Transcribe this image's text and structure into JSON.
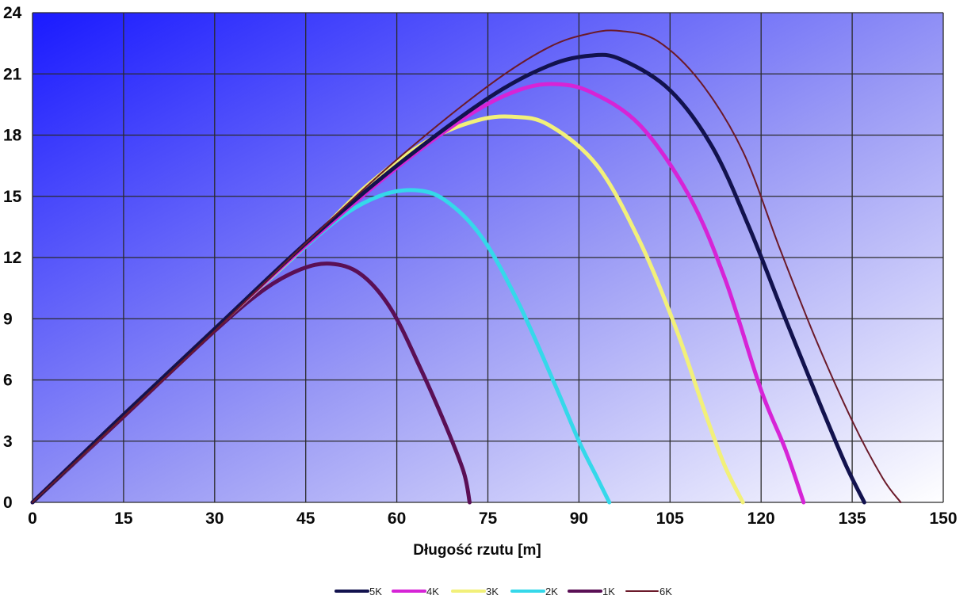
{
  "chart_data": {
    "type": "line",
    "title": "",
    "xlabel": "Długość rzutu [m]",
    "ylabel": "",
    "xlim": [
      0,
      150
    ],
    "ylim": [
      0,
      24
    ],
    "x_ticks": [
      0,
      15,
      30,
      45,
      60,
      75,
      90,
      105,
      120,
      135,
      150
    ],
    "y_ticks": [
      0,
      3,
      6,
      9,
      12,
      15,
      18,
      21,
      24
    ],
    "grid": true,
    "legend_position": "bottom",
    "colors": {
      "plot_bg_top": "#1a1aff",
      "plot_bg_bottom": "#ffffff",
      "grid": "#2a2a2a"
    },
    "series": [
      {
        "name": "5K",
        "color": "#12124e",
        "stroke_weight": "thick",
        "points": [
          [
            0,
            0
          ],
          [
            15,
            4.3
          ],
          [
            30,
            8.5
          ],
          [
            45,
            12.7
          ],
          [
            60,
            16.5
          ],
          [
            75,
            19.8
          ],
          [
            85,
            21.4
          ],
          [
            92,
            21.9
          ],
          [
            97,
            21.7
          ],
          [
            105,
            20.2
          ],
          [
            112,
            17.4
          ],
          [
            118,
            13.5
          ],
          [
            124,
            9.0
          ],
          [
            130,
            4.6
          ],
          [
            134,
            1.8
          ],
          [
            137,
            0
          ]
        ]
      },
      {
        "name": "4K",
        "color": "#d624d6",
        "stroke_weight": "thick",
        "points": [
          [
            0,
            0
          ],
          [
            15,
            4.3
          ],
          [
            30,
            8.5
          ],
          [
            45,
            12.6
          ],
          [
            60,
            16.4
          ],
          [
            72,
            19.0
          ],
          [
            80,
            20.2
          ],
          [
            86,
            20.5
          ],
          [
            92,
            20.1
          ],
          [
            100,
            18.5
          ],
          [
            108,
            15.1
          ],
          [
            114,
            11.0
          ],
          [
            120,
            5.5
          ],
          [
            124,
            2.6
          ],
          [
            127,
            0
          ]
        ]
      },
      {
        "name": "3K",
        "color": "#f2f07a",
        "stroke_weight": "thick",
        "points": [
          [
            0,
            0
          ],
          [
            15,
            4.3
          ],
          [
            30,
            8.5
          ],
          [
            45,
            12.6
          ],
          [
            55,
            15.5
          ],
          [
            65,
            17.7
          ],
          [
            73,
            18.7
          ],
          [
            79,
            18.9
          ],
          [
            85,
            18.5
          ],
          [
            93,
            16.5
          ],
          [
            100,
            12.8
          ],
          [
            106,
            8.5
          ],
          [
            111,
            4.2
          ],
          [
            114,
            1.8
          ],
          [
            117,
            0
          ]
        ]
      },
      {
        "name": "2K",
        "color": "#35d8ea",
        "stroke_weight": "thick",
        "points": [
          [
            0,
            0
          ],
          [
            15,
            4.3
          ],
          [
            30,
            8.5
          ],
          [
            40,
            11.2
          ],
          [
            50,
            13.8
          ],
          [
            57,
            15.0
          ],
          [
            63,
            15.3
          ],
          [
            68,
            14.8
          ],
          [
            74,
            13.0
          ],
          [
            80,
            9.8
          ],
          [
            86,
            5.8
          ],
          [
            90,
            3.0
          ],
          [
            93,
            1.2
          ],
          [
            95,
            0
          ]
        ]
      },
      {
        "name": "1K",
        "color": "#5a0f55",
        "stroke_weight": "thick",
        "points": [
          [
            0,
            0
          ],
          [
            15,
            4.2
          ],
          [
            30,
            8.4
          ],
          [
            38,
            10.4
          ],
          [
            44,
            11.4
          ],
          [
            49,
            11.7
          ],
          [
            54,
            11.2
          ],
          [
            59,
            9.5
          ],
          [
            64,
            6.5
          ],
          [
            68,
            3.8
          ],
          [
            71,
            1.5
          ],
          [
            72,
            0
          ]
        ]
      },
      {
        "name": "6K",
        "color": "#6b1a2a",
        "stroke_weight": "thin",
        "points": [
          [
            0,
            0
          ],
          [
            15,
            4.2
          ],
          [
            30,
            8.4
          ],
          [
            45,
            12.7
          ],
          [
            60,
            16.8
          ],
          [
            75,
            20.4
          ],
          [
            85,
            22.3
          ],
          [
            92,
            23.0
          ],
          [
            97,
            23.1
          ],
          [
            103,
            22.6
          ],
          [
            110,
            20.6
          ],
          [
            117,
            17.2
          ],
          [
            123,
            12.5
          ],
          [
            129,
            8.0
          ],
          [
            135,
            4.0
          ],
          [
            140,
            1.2
          ],
          [
            143,
            0
          ]
        ]
      }
    ]
  }
}
